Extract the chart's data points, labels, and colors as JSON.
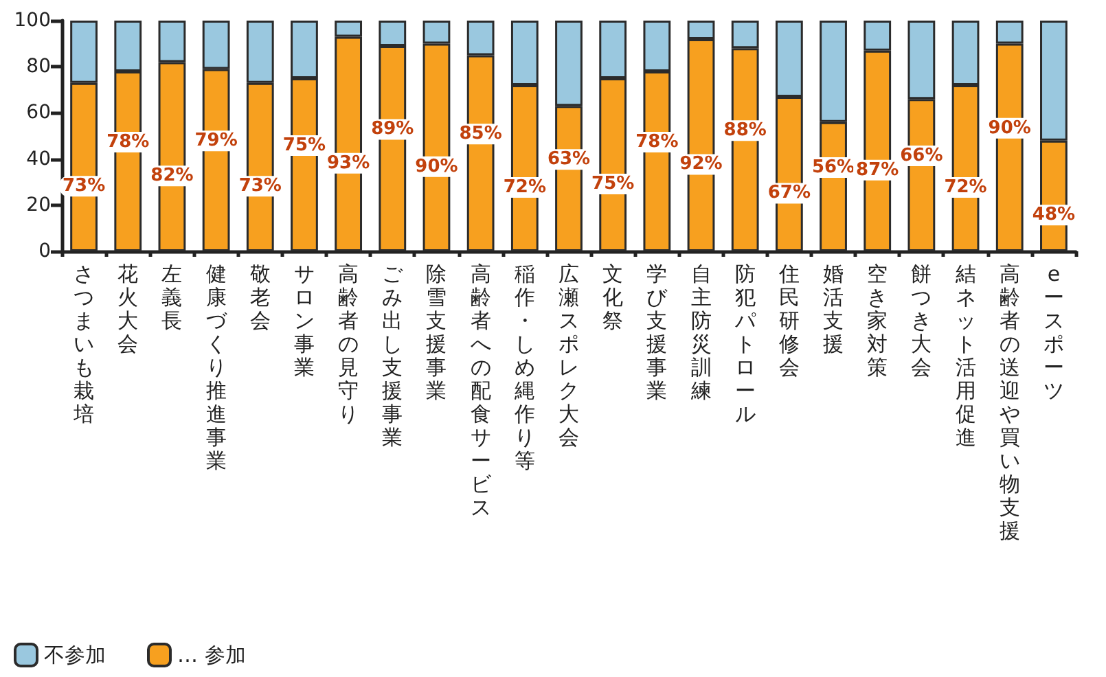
{
  "chart_data": {
    "type": "bar",
    "stacked": true,
    "categories": [
      "さつまいも栽培",
      "花火大会",
      "左義長",
      "健康づくり推進事業",
      "敬老会",
      "サロン事業",
      "高齢者の見守り",
      "ごみ出し支援事業",
      "除雪支援事業",
      "高齢者への配食サービス",
      "稲作・しめ縄作り等",
      "広瀬スポレク大会",
      "文化祭",
      "学び支援事業",
      "自主防災訓練",
      "防犯パトロール",
      "住民研修会",
      "婚活支援",
      "空き家対策",
      "餅つき大会",
      "結ネット活用促進",
      "高齢者の送迎や買い物支援",
      "eースポーツ"
    ],
    "series": [
      {
        "name": "… 参加",
        "color": "#f7a01f",
        "values": [
          73,
          78,
          82,
          79,
          73,
          75,
          93,
          89,
          90,
          85,
          72,
          63,
          75,
          78,
          92,
          88,
          67,
          56,
          87,
          66,
          72,
          90,
          48
        ],
        "value_labels": [
          "73%",
          "78%",
          "82%",
          "79%",
          "73%",
          "75%",
          "93%",
          "89%",
          "90%",
          "85%",
          "72%",
          "63%",
          "75%",
          "78%",
          "92%",
          "88%",
          "67%",
          "56%",
          "87%",
          "66%",
          "72%",
          "90%",
          "48%"
        ]
      },
      {
        "name": "不参加",
        "color": "#9ac8df",
        "values": [
          27,
          22,
          18,
          21,
          27,
          25,
          7,
          11,
          10,
          15,
          28,
          37,
          25,
          22,
          8,
          12,
          33,
          44,
          13,
          34,
          28,
          10,
          52
        ]
      }
    ],
    "ylim": [
      0,
      100
    ],
    "yticks": [
      0,
      20,
      40,
      60,
      80,
      100
    ],
    "grid": false,
    "legend": "bottom left"
  }
}
